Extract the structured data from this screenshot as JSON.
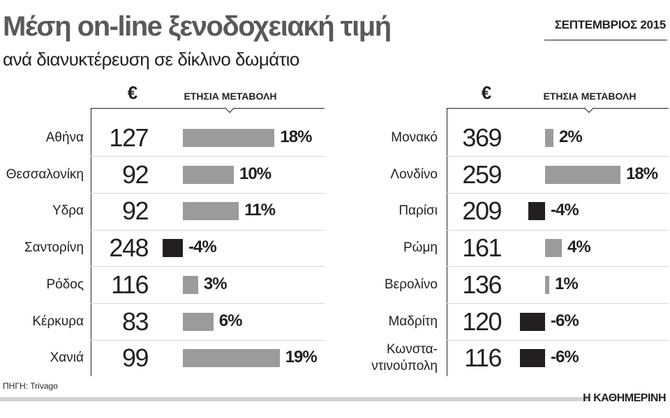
{
  "title": "Μέση on-line ξενοδοχειακή τιμή",
  "subtitle": "ανά διανυκτέρευση σε δίκλινο δωμάτιο",
  "date": "ΣΕΠΤΕΜΒΡΙΟΣ 2015",
  "source": "ΠΗΓΗ: Trivago",
  "brand": "Η ΚΑΘΗΜΕΡΙΝΗ",
  "chart_data": [
    {
      "type": "bar",
      "orientation": "horizontal",
      "price_header": "€",
      "change_header": "ΕΤΗΣΙΑ ΜΕΤΑΒΟΛΗ",
      "categories": [
        "Αθήνα",
        "Θεσσαλονίκη",
        "Υδρα",
        "Σαντορίνη",
        "Ρόδος",
        "Κέρκυρα",
        "Χανιά"
      ],
      "prices": [
        127,
        92,
        92,
        248,
        116,
        83,
        99
      ],
      "values": [
        18,
        10,
        11,
        -4,
        3,
        6,
        19
      ],
      "value_labels": [
        "18%",
        "10%",
        "11%",
        "-4%",
        "3%",
        "6%",
        "19%"
      ],
      "color": "#9b9b9b",
      "negative_color": "#231f20"
    },
    {
      "type": "bar",
      "orientation": "horizontal",
      "price_header": "€",
      "change_header": "ΕΤΗΣΙΑ ΜΕΤΑΒΟΛΗ",
      "categories": [
        "Μονακό",
        "Λονδίνο",
        "Παρίσι",
        "Ρώμη",
        "Βερολίνο",
        "Μαδρίτη",
        "Κωνστα-\nντινούπολη"
      ],
      "prices": [
        369,
        259,
        209,
        161,
        136,
        120,
        116
      ],
      "values": [
        2,
        18,
        -4,
        4,
        1,
        -6,
        -6
      ],
      "value_labels": [
        "2%",
        "18%",
        "-4%",
        "4%",
        "1%",
        "-6%",
        "-6%"
      ],
      "color": "#9b9b9b",
      "negative_color": "#231f20"
    }
  ]
}
